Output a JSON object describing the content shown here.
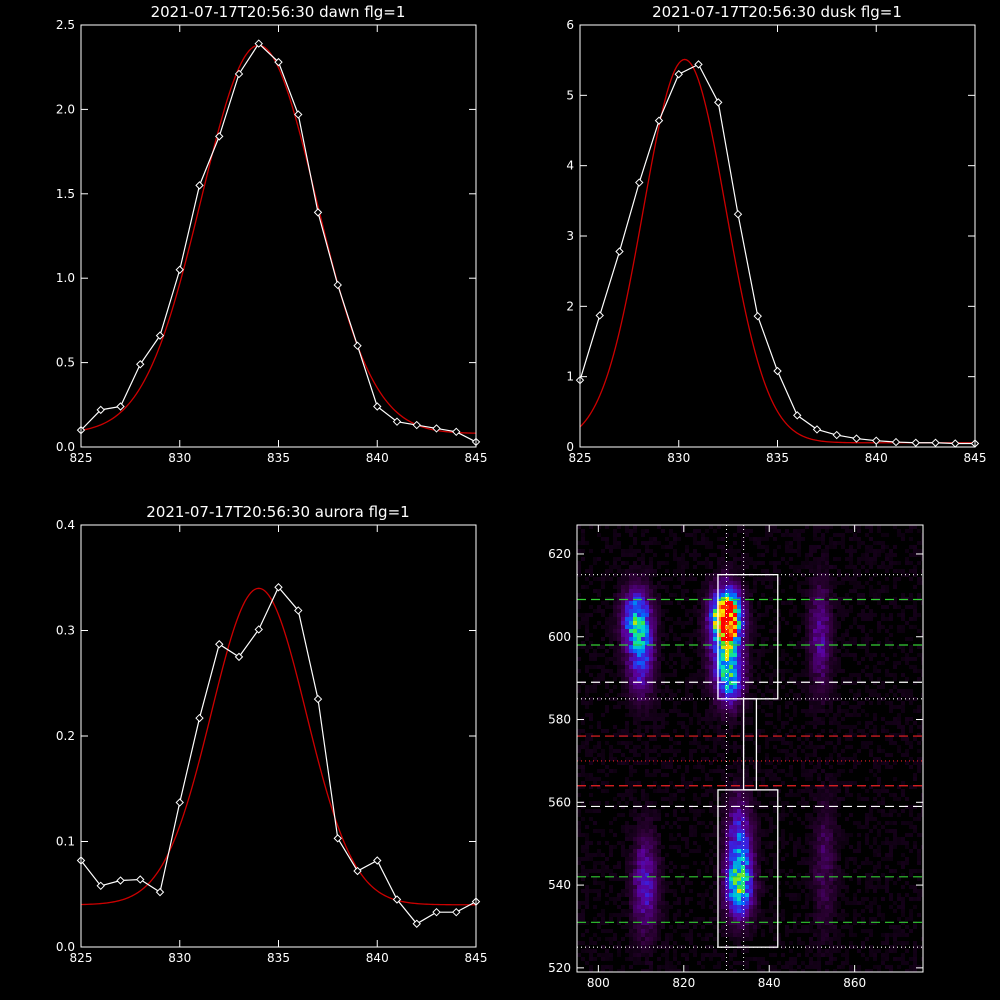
{
  "chart_data": [
    {
      "type": "line",
      "title": "2021-07-17T20:56:30 dawn flg=1",
      "xlim": [
        825,
        845
      ],
      "ylim": [
        0,
        2.5
      ],
      "xticks": [
        "825",
        "830",
        "835",
        "840",
        "845"
      ],
      "yticks": [
        "0.0",
        "0.5",
        "1.0",
        "1.5",
        "2.0",
        "2.5"
      ],
      "series": [
        {
          "color": "#ffffff",
          "marker": "diamond",
          "x": [
            825,
            826,
            827,
            828,
            829,
            830,
            831,
            832,
            833,
            834,
            835,
            836,
            837,
            838,
            839,
            840,
            841,
            842,
            843,
            844,
            845
          ],
          "y": [
            0.1,
            0.22,
            0.24,
            0.49,
            0.66,
            1.05,
            1.55,
            1.84,
            2.21,
            2.39,
            2.28,
            1.97,
            1.39,
            0.96,
            0.6,
            0.24,
            0.15,
            0.13,
            0.11,
            0.09,
            0.03
          ]
        },
        {
          "color": "#cc0000",
          "marker": "none",
          "model": {
            "amplitude": 2.3,
            "center": 834.0,
            "sigma": 2.9,
            "offset": 0.08
          }
        }
      ]
    },
    {
      "type": "line",
      "title": "2021-07-17T20:56:30 dusk flg=1",
      "xlim": [
        825,
        845
      ],
      "ylim": [
        0,
        6
      ],
      "xticks": [
        "825",
        "830",
        "835",
        "840",
        "845"
      ],
      "yticks": [
        "0",
        "1",
        "2",
        "3",
        "4",
        "5",
        "6"
      ],
      "series": [
        {
          "color": "#ffffff",
          "marker": "diamond",
          "x": [
            825,
            826,
            827,
            828,
            829,
            830,
            831,
            832,
            833,
            834,
            835,
            836,
            837,
            838,
            839,
            840,
            841,
            842,
            843,
            844,
            845
          ],
          "y": [
            0.95,
            1.87,
            2.78,
            3.76,
            4.64,
            5.3,
            5.44,
            4.9,
            3.31,
            1.86,
            1.08,
            0.45,
            0.25,
            0.17,
            0.12,
            0.09,
            0.07,
            0.06,
            0.06,
            0.05,
            0.05
          ]
        },
        {
          "color": "#cc0000",
          "marker": "none",
          "model": {
            "amplitude": 5.45,
            "center": 830.3,
            "sigma": 2.1,
            "offset": 0.06
          }
        }
      ]
    },
    {
      "type": "line",
      "title": "2021-07-17T20:56:30 aurora flg=1",
      "xlim": [
        825,
        845
      ],
      "ylim": [
        0,
        0.4
      ],
      "xticks": [
        "825",
        "830",
        "835",
        "840",
        "845"
      ],
      "yticks": [
        "0.0",
        "0.1",
        "0.2",
        "0.3",
        "0.4"
      ],
      "series": [
        {
          "color": "#ffffff",
          "marker": "diamond",
          "x": [
            825,
            826,
            827,
            828,
            829,
            830,
            831,
            832,
            833,
            834,
            835,
            836,
            837,
            838,
            839,
            840,
            841,
            842,
            843,
            844,
            845
          ],
          "y": [
            0.082,
            0.058,
            0.063,
            0.064,
            0.052,
            0.137,
            0.217,
            0.287,
            0.275,
            0.301,
            0.341,
            0.319,
            0.235,
            0.103,
            0.072,
            0.082,
            0.045,
            0.022,
            0.033,
            0.033,
            0.043
          ]
        },
        {
          "color": "#cc0000",
          "marker": "none",
          "model": {
            "amplitude": 0.3,
            "center": 834.0,
            "sigma": 2.4,
            "offset": 0.04
          }
        }
      ]
    },
    {
      "type": "heatmap",
      "xlim": [
        795,
        876
      ],
      "ylim": [
        519,
        627
      ],
      "xticks": [
        "800",
        "820",
        "840",
        "860"
      ],
      "yticks": [
        "520",
        "540",
        "560",
        "580",
        "600",
        "620"
      ],
      "blobs": [
        {
          "x": 809,
          "y": 604,
          "sx": 2.3,
          "sy": 5,
          "amp": 0.55
        },
        {
          "x": 810,
          "y": 594,
          "sx": 2.0,
          "sy": 6,
          "amp": 0.35
        },
        {
          "x": 830,
          "y": 605,
          "sx": 2.2,
          "sy": 4,
          "amp": 0.95
        },
        {
          "x": 830,
          "y": 598,
          "sx": 2.5,
          "sy": 8,
          "amp": 0.5
        },
        {
          "x": 831,
          "y": 590,
          "sx": 2.0,
          "sy": 4,
          "amp": 0.35
        },
        {
          "x": 833,
          "y": 539,
          "sx": 2.2,
          "sy": 5,
          "amp": 0.55
        },
        {
          "x": 833,
          "y": 550,
          "sx": 2.0,
          "sy": 7,
          "amp": 0.4
        },
        {
          "x": 811,
          "y": 540,
          "sx": 2.0,
          "sy": 8,
          "amp": 0.3
        },
        {
          "x": 852,
          "y": 600,
          "sx": 1.8,
          "sy": 9,
          "amp": 0.22
        },
        {
          "x": 853,
          "y": 545,
          "sx": 1.8,
          "sy": 10,
          "amp": 0.14
        }
      ],
      "boxes": [
        {
          "x0": 828,
          "x1": 842,
          "y0": 585,
          "y1": 615
        },
        {
          "x0": 828,
          "x1": 842,
          "y0": 525,
          "y1": 563
        },
        {
          "x0": 834,
          "x1": 837,
          "y0": 563,
          "y1": 585
        }
      ],
      "hlines": [
        {
          "y": 615,
          "color": "#ffffff",
          "style": "dotted"
        },
        {
          "y": 609,
          "color": "#33cc33",
          "style": "dashed"
        },
        {
          "y": 598,
          "color": "#33cc33",
          "style": "dashed"
        },
        {
          "y": 589,
          "color": "#ffffff",
          "style": "dashed"
        },
        {
          "y": 585,
          "color": "#ffffff",
          "style": "dotted"
        },
        {
          "y": 576,
          "color": "#ee2222",
          "style": "dashed"
        },
        {
          "y": 570,
          "color": "#ee2222",
          "style": "dotted"
        },
        {
          "y": 564,
          "color": "#ee2222",
          "style": "dashed"
        },
        {
          "y": 559,
          "color": "#ffffff",
          "style": "dashed"
        },
        {
          "y": 542,
          "color": "#33cc33",
          "style": "dashed"
        },
        {
          "y": 531,
          "color": "#33cc33",
          "style": "dashed"
        },
        {
          "y": 525,
          "color": "#ffffff",
          "style": "dotted"
        }
      ],
      "vlines": [
        {
          "x": 830,
          "color": "#ffffff",
          "style": "dotted"
        },
        {
          "x": 834,
          "color": "#ffffff",
          "style": "dotted"
        }
      ]
    }
  ]
}
